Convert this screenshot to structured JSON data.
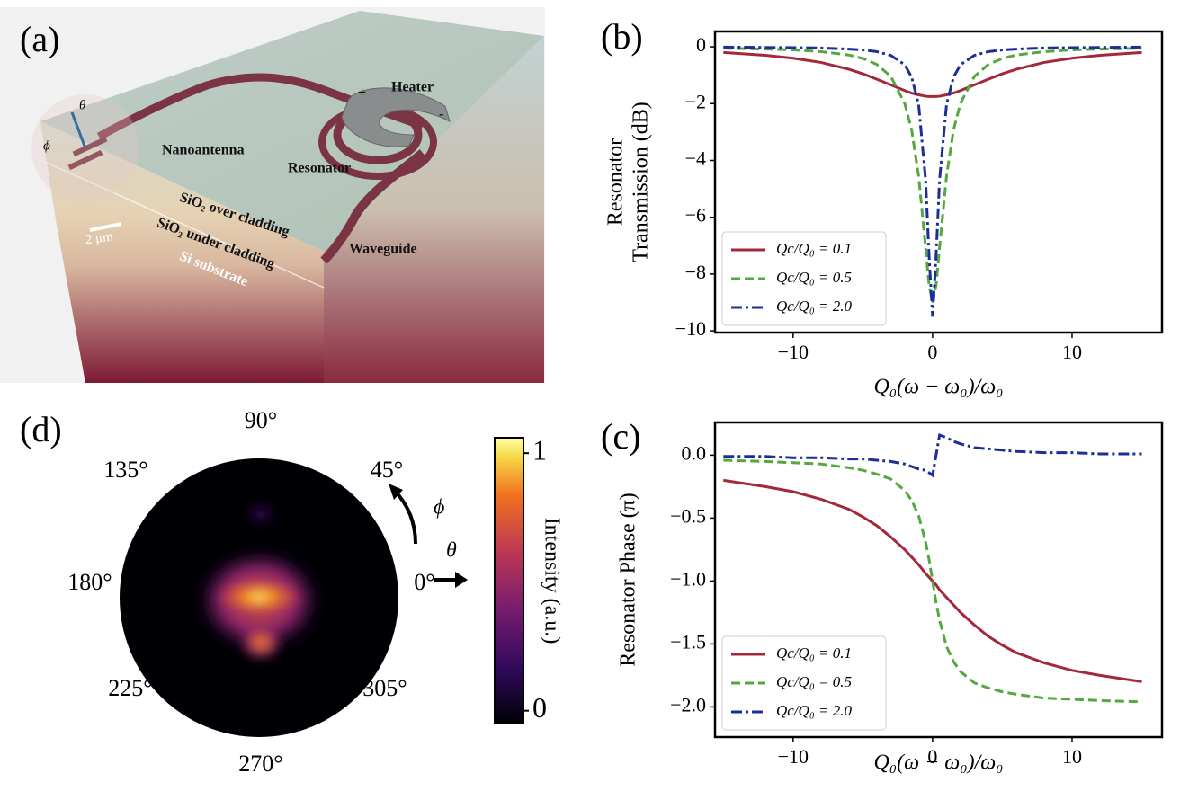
{
  "illustration": {
    "label": "(a)",
    "heater": "Heater",
    "plus": "+",
    "minus": "-",
    "nanoantenna": "Nanoantenna",
    "resonator": "Resonator",
    "over_cladding": "SiO₂ over cladding",
    "under_cladding": "SiO₂ under cladding",
    "substrate": "Si substrate",
    "waveguide": "Waveguide",
    "scale": "2 μm",
    "theta": "θ",
    "phi": "ϕ"
  },
  "polar_map": {
    "label": "(d)",
    "angle_labels": [
      "90°",
      "45°",
      "0°",
      "305°",
      "270°",
      "225°",
      "180°",
      "135°"
    ],
    "phi": "ϕ",
    "theta": "θ",
    "colorbar": {
      "label": "Intensity (a.u.)",
      "clim": [
        -0.05,
        1.06
      ],
      "ticks": [
        0,
        1
      ]
    }
  },
  "chart_data": [
    {
      "type": "line",
      "label": "(b)",
      "ylabel": [
        "Resonator",
        "Transmission (dB)"
      ],
      "xlabel": "Q₀(ω − ω₀)/ω₀",
      "x": [
        -15,
        -12,
        -10,
        -8,
        -6,
        -5,
        -4,
        -3,
        -2,
        -1.5,
        -1,
        -0.5,
        -0.25,
        0,
        0.25,
        0.5,
        1,
        1.5,
        2,
        3,
        4,
        5,
        6,
        8,
        10,
        12,
        15
      ],
      "series": [
        {
          "name": "Qc/Q₀ = 0.1",
          "color": "#a3283a",
          "linestyle": "solid",
          "values": [
            -0.2,
            -0.3,
            -0.4,
            -0.55,
            -0.79,
            -0.95,
            -1.14,
            -1.34,
            -1.54,
            -1.63,
            -1.69,
            -1.74,
            -1.75,
            -1.75,
            -1.75,
            -1.74,
            -1.69,
            -1.63,
            -1.54,
            -1.34,
            -1.14,
            -0.95,
            -0.79,
            -0.55,
            -0.4,
            -0.3,
            -0.2
          ]
        },
        {
          "name": "Qc/Q₀ = 0.5",
          "color": "#55a83f",
          "linestyle": "dashed",
          "values": [
            -0.05,
            -0.08,
            -0.11,
            -0.17,
            -0.29,
            -0.41,
            -0.62,
            -1.04,
            -1.99,
            -2.93,
            -4.55,
            -7.07,
            -8.4,
            -9.0,
            -8.4,
            -7.07,
            -4.55,
            -2.93,
            -1.99,
            -1.04,
            -0.62,
            -0.41,
            -0.29,
            -0.17,
            -0.11,
            -0.08,
            -0.05
          ]
        },
        {
          "name": "Qc/Q₀ = 2.0",
          "color": "#1c2f96",
          "linestyle": "dashdot",
          "values": [
            -0.01,
            -0.02,
            -0.03,
            -0.04,
            -0.08,
            -0.11,
            -0.17,
            -0.3,
            -0.63,
            -1.07,
            -2.03,
            -4.69,
            -7.37,
            -9.5,
            -7.37,
            -4.69,
            -2.03,
            -1.07,
            -0.63,
            -0.3,
            -0.17,
            -0.11,
            -0.08,
            -0.04,
            -0.03,
            -0.02,
            -0.01
          ]
        }
      ],
      "xlim": [
        -15.6,
        16.45
      ],
      "ylim": [
        -10.06,
        0.54
      ],
      "xticks": [
        {
          "value": -10,
          "label": "−10"
        },
        0,
        10
      ],
      "yticks": [
        {
          "value": -10,
          "label": "−10"
        },
        {
          "value": -8,
          "label": "−8"
        },
        {
          "value": -6,
          "label": "−6"
        },
        {
          "value": -4,
          "label": "−4"
        },
        {
          "value": -2,
          "label": "−2"
        },
        0
      ],
      "legend": "lower left"
    },
    {
      "type": "line",
      "label": "(c)",
      "ylabel": [
        "Resonator Phase  (π)"
      ],
      "xlabel": "Q₀(ω − ω₀)/ω₀",
      "x": [
        -15,
        -12,
        -10,
        -8,
        -6,
        -5,
        -4,
        -3,
        -2,
        -1.5,
        -1,
        -0.5,
        -0.25,
        0,
        0.25,
        0.5,
        1,
        1.5,
        2,
        3,
        4,
        5,
        6,
        8,
        10,
        12,
        15
      ],
      "series": [
        {
          "name": "Qc/Q₀ = 0.1",
          "color": "#a3283a",
          "linestyle": "solid",
          "values": [
            -0.2,
            -0.25,
            -0.29,
            -0.35,
            -0.43,
            -0.49,
            -0.56,
            -0.65,
            -0.75,
            -0.81,
            -0.87,
            -0.94,
            -0.97,
            -1.0,
            -1.03,
            -1.07,
            -1.13,
            -1.19,
            -1.25,
            -1.35,
            -1.44,
            -1.51,
            -1.57,
            -1.65,
            -1.71,
            -1.75,
            -1.8
          ]
        },
        {
          "name": "Qc/Q₀ = 0.5",
          "color": "#55a83f",
          "linestyle": "dashed",
          "values": [
            -0.04,
            -0.05,
            -0.06,
            -0.07,
            -0.1,
            -0.12,
            -0.15,
            -0.19,
            -0.28,
            -0.36,
            -0.48,
            -0.69,
            -0.83,
            -1.0,
            -1.17,
            -1.31,
            -1.52,
            -1.64,
            -1.72,
            -1.81,
            -1.85,
            -1.88,
            -1.9,
            -1.93,
            -1.94,
            -1.95,
            -1.96
          ]
        },
        {
          "name": "Qc/Q₀ = 2.0",
          "color": "#1c2f96",
          "linestyle": "dashdot",
          "values": [
            -0.01,
            -0.01,
            -0.02,
            -0.02,
            -0.03,
            -0.03,
            -0.04,
            -0.05,
            -0.07,
            -0.09,
            -0.11,
            -0.12,
            -0.14,
            -0.16,
            0.0,
            0.16,
            0.14,
            0.11,
            0.09,
            0.06,
            0.05,
            0.04,
            0.03,
            0.02,
            0.02,
            0.01,
            0.01
          ]
        }
      ],
      "xlim": [
        -15.6,
        16.45
      ],
      "ylim": [
        -2.24,
        0.26
      ],
      "xticks": [
        {
          "value": -10,
          "label": "−10"
        },
        0,
        10
      ],
      "yticks": [
        {
          "value": -2.0,
          "label": "−2.0"
        },
        {
          "value": -1.5,
          "label": "−1.5"
        },
        {
          "value": -1.0,
          "label": "−1.0"
        },
        {
          "value": -0.5,
          "label": "−0.5"
        },
        {
          "value": 0.0,
          "label": "0.0"
        }
      ],
      "legend": "lower left"
    }
  ]
}
